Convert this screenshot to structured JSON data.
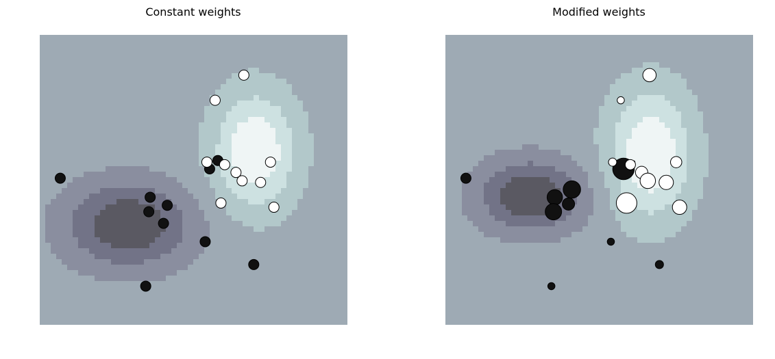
{
  "chart_data": [
    {
      "type": "scatter",
      "title": "Constant weights",
      "background": "contour",
      "axes_visible": false,
      "xlim": [
        -4,
        5
      ],
      "ylim": [
        -4,
        5
      ],
      "contour_colors": [
        "#5a5962",
        "#727387",
        "#8a8e9f",
        "#9eaab4",
        "#b2c8ca",
        "#cde1e1",
        "#eff5f5"
      ],
      "points": [
        {
          "x": -3.4,
          "y": 0.55,
          "class": 0,
          "size": 1
        },
        {
          "x": -0.77,
          "y": -0.04,
          "class": 0,
          "size": 1
        },
        {
          "x": -0.27,
          "y": -0.29,
          "class": 0,
          "size": 1
        },
        {
          "x": -0.81,
          "y": -0.49,
          "class": 0,
          "size": 1
        },
        {
          "x": -0.38,
          "y": -0.85,
          "class": 0,
          "size": 1
        },
        {
          "x": 0.84,
          "y": -1.42,
          "class": 0,
          "size": 1
        },
        {
          "x": -0.9,
          "y": -2.8,
          "class": 0,
          "size": 1
        },
        {
          "x": 2.26,
          "y": -2.13,
          "class": 0,
          "size": 1
        },
        {
          "x": 1.21,
          "y": 1.1,
          "class": 0,
          "size": 1
        },
        {
          "x": 0.97,
          "y": 0.84,
          "class": 0,
          "size": 1
        },
        {
          "x": 1.97,
          "y": 3.75,
          "class": 1,
          "size": 1
        },
        {
          "x": 1.13,
          "y": 2.97,
          "class": 1,
          "size": 1
        },
        {
          "x": 0.89,
          "y": 1.05,
          "class": 1,
          "size": 1
        },
        {
          "x": 1.41,
          "y": 0.97,
          "class": 1,
          "size": 1
        },
        {
          "x": 1.74,
          "y": 0.73,
          "class": 1,
          "size": 1
        },
        {
          "x": 1.92,
          "y": 0.47,
          "class": 1,
          "size": 1
        },
        {
          "x": 2.46,
          "y": 0.42,
          "class": 1,
          "size": 1
        },
        {
          "x": 2.75,
          "y": 1.05,
          "class": 1,
          "size": 1
        },
        {
          "x": 1.3,
          "y": -0.22,
          "class": 1,
          "size": 1
        },
        {
          "x": 2.85,
          "y": -0.35,
          "class": 1,
          "size": 1
        }
      ],
      "region_centers": [
        {
          "x": 2.3,
          "y": 1.4,
          "level": 1.0,
          "sx": 1.2,
          "sy": 1.8
        },
        {
          "x": -1.4,
          "y": -0.9,
          "level": -1.0,
          "sx": 1.8,
          "sy": 1.3
        }
      ]
    },
    {
      "type": "scatter",
      "title": "Modified weights",
      "background": "contour",
      "axes_visible": false,
      "xlim": [
        -4,
        5
      ],
      "ylim": [
        -4,
        5
      ],
      "contour_colors": [
        "#5a5962",
        "#727387",
        "#8a8e9f",
        "#9eaab4",
        "#b2c8ca",
        "#cde1e1",
        "#eff5f5"
      ],
      "points": [
        {
          "x": -3.4,
          "y": 0.55,
          "class": 0,
          "size": 1
        },
        {
          "x": -0.8,
          "y": -0.04,
          "class": 0,
          "size": 1.5
        },
        {
          "x": -0.3,
          "y": 0.2,
          "class": 0,
          "size": 1.7
        },
        {
          "x": -0.84,
          "y": -0.49,
          "class": 0,
          "size": 1.6
        },
        {
          "x": -0.4,
          "y": -0.25,
          "class": 0,
          "size": 1.2
        },
        {
          "x": 0.84,
          "y": -1.42,
          "class": 0,
          "size": 0.7
        },
        {
          "x": -0.9,
          "y": -2.8,
          "class": 0,
          "size": 0.7
        },
        {
          "x": 2.26,
          "y": -2.13,
          "class": 0,
          "size": 0.8
        },
        {
          "x": 1.21,
          "y": 0.84,
          "class": 0,
          "size": 2.1
        },
        {
          "x": 1.5,
          "y": 1.05,
          "class": 0,
          "size": 0.3
        },
        {
          "x": 1.97,
          "y": 3.75,
          "class": 1,
          "size": 1.3
        },
        {
          "x": 1.13,
          "y": 2.97,
          "class": 1,
          "size": 0.7
        },
        {
          "x": 0.89,
          "y": 1.05,
          "class": 1,
          "size": 0.8
        },
        {
          "x": 1.41,
          "y": 0.97,
          "class": 1,
          "size": 1.0
        },
        {
          "x": 1.74,
          "y": 0.73,
          "class": 1,
          "size": 1.2
        },
        {
          "x": 1.92,
          "y": 0.47,
          "class": 1,
          "size": 1.5
        },
        {
          "x": 2.46,
          "y": 0.42,
          "class": 1,
          "size": 1.4
        },
        {
          "x": 2.75,
          "y": 1.05,
          "class": 1,
          "size": 1.1
        },
        {
          "x": 1.3,
          "y": -0.22,
          "class": 1,
          "size": 2.0
        },
        {
          "x": 2.85,
          "y": -0.35,
          "class": 1,
          "size": 1.4
        }
      ],
      "region_centers": [
        {
          "x": 2.0,
          "y": 1.3,
          "level": 1.0,
          "sx": 1.2,
          "sy": 2.0
        },
        {
          "x": -1.5,
          "y": 0.0,
          "level": -1.0,
          "sx": 1.5,
          "sy": 1.1
        }
      ]
    }
  ]
}
